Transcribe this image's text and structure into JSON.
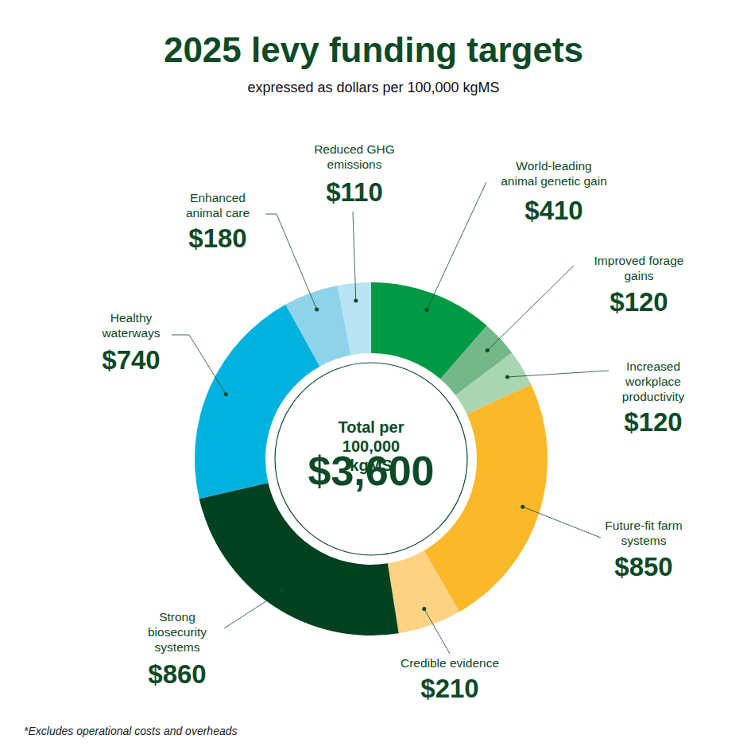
{
  "chart_data": {
    "type": "donut",
    "title": "2025 levy funding targets",
    "subtitle": "expressed as dollars per 100,000 kgMS",
    "center_label": "Total per 100,000 kgMS",
    "center_value": "$3,600",
    "footnote": "*Excludes operational costs and overheads",
    "categories": [
      "World-leading animal genetic gain",
      "Improved forage gains",
      "Increased workplace productivity",
      "Future-fit farm systems",
      "Credible evidence",
      "Strong biosecurity systems",
      "Healthy waterways",
      "Enhanced animal care",
      "Reduced GHG emissions"
    ],
    "values": [
      410,
      120,
      120,
      850,
      210,
      860,
      740,
      180,
      110
    ],
    "value_labels": [
      "$410",
      "$120",
      "$120",
      "$850",
      "$210",
      "$860",
      "$740",
      "$180",
      "$110"
    ],
    "colors": [
      "#009a44",
      "#74b88a",
      "#a9d6b2",
      "#fbb829",
      "#fdd383",
      "#00421f",
      "#00b2e0",
      "#8dd3ec",
      "#b7e3f3"
    ],
    "data_labels": true
  }
}
